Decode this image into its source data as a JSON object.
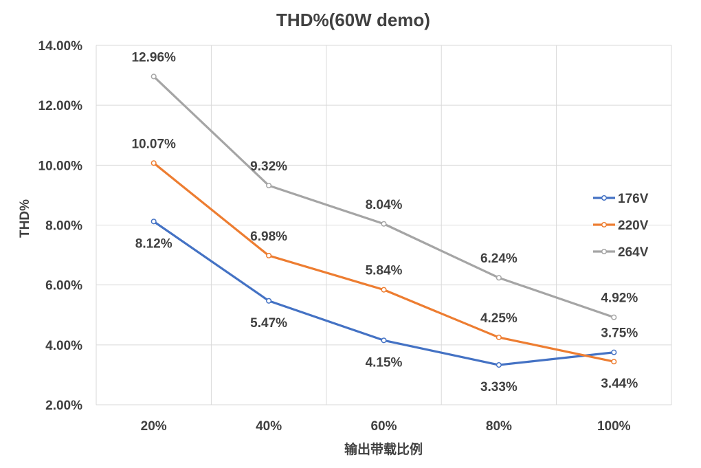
{
  "chart_data": {
    "type": "line",
    "title": "THD%(60W demo)",
    "xlabel": "输出带载比例",
    "ylabel": "THD%",
    "categories": [
      "20%",
      "40%",
      "60%",
      "80%",
      "100%"
    ],
    "ylim": [
      2,
      14
    ],
    "yticks": [
      "2.00%",
      "4.00%",
      "6.00%",
      "8.00%",
      "10.00%",
      "12.00%",
      "14.00%"
    ],
    "grid": true,
    "legend_position": "right",
    "series": [
      {
        "name": "176V",
        "color": "#4472C4",
        "values": [
          8.12,
          5.47,
          4.15,
          3.33,
          3.75
        ],
        "labels": [
          "8.12%",
          "5.47%",
          "4.15%",
          "3.33%",
          "3.75%"
        ]
      },
      {
        "name": "220V",
        "color": "#ED7D31",
        "values": [
          10.07,
          6.98,
          5.84,
          4.25,
          3.44
        ],
        "labels": [
          "10.07%",
          "6.98%",
          "5.84%",
          "4.25%",
          "3.44%"
        ]
      },
      {
        "name": "264V",
        "color": "#A5A5A5",
        "values": [
          12.96,
          9.32,
          8.04,
          6.24,
          4.92
        ],
        "labels": [
          "12.96%",
          "9.32%",
          "8.04%",
          "6.24%",
          "4.92%"
        ]
      }
    ]
  }
}
